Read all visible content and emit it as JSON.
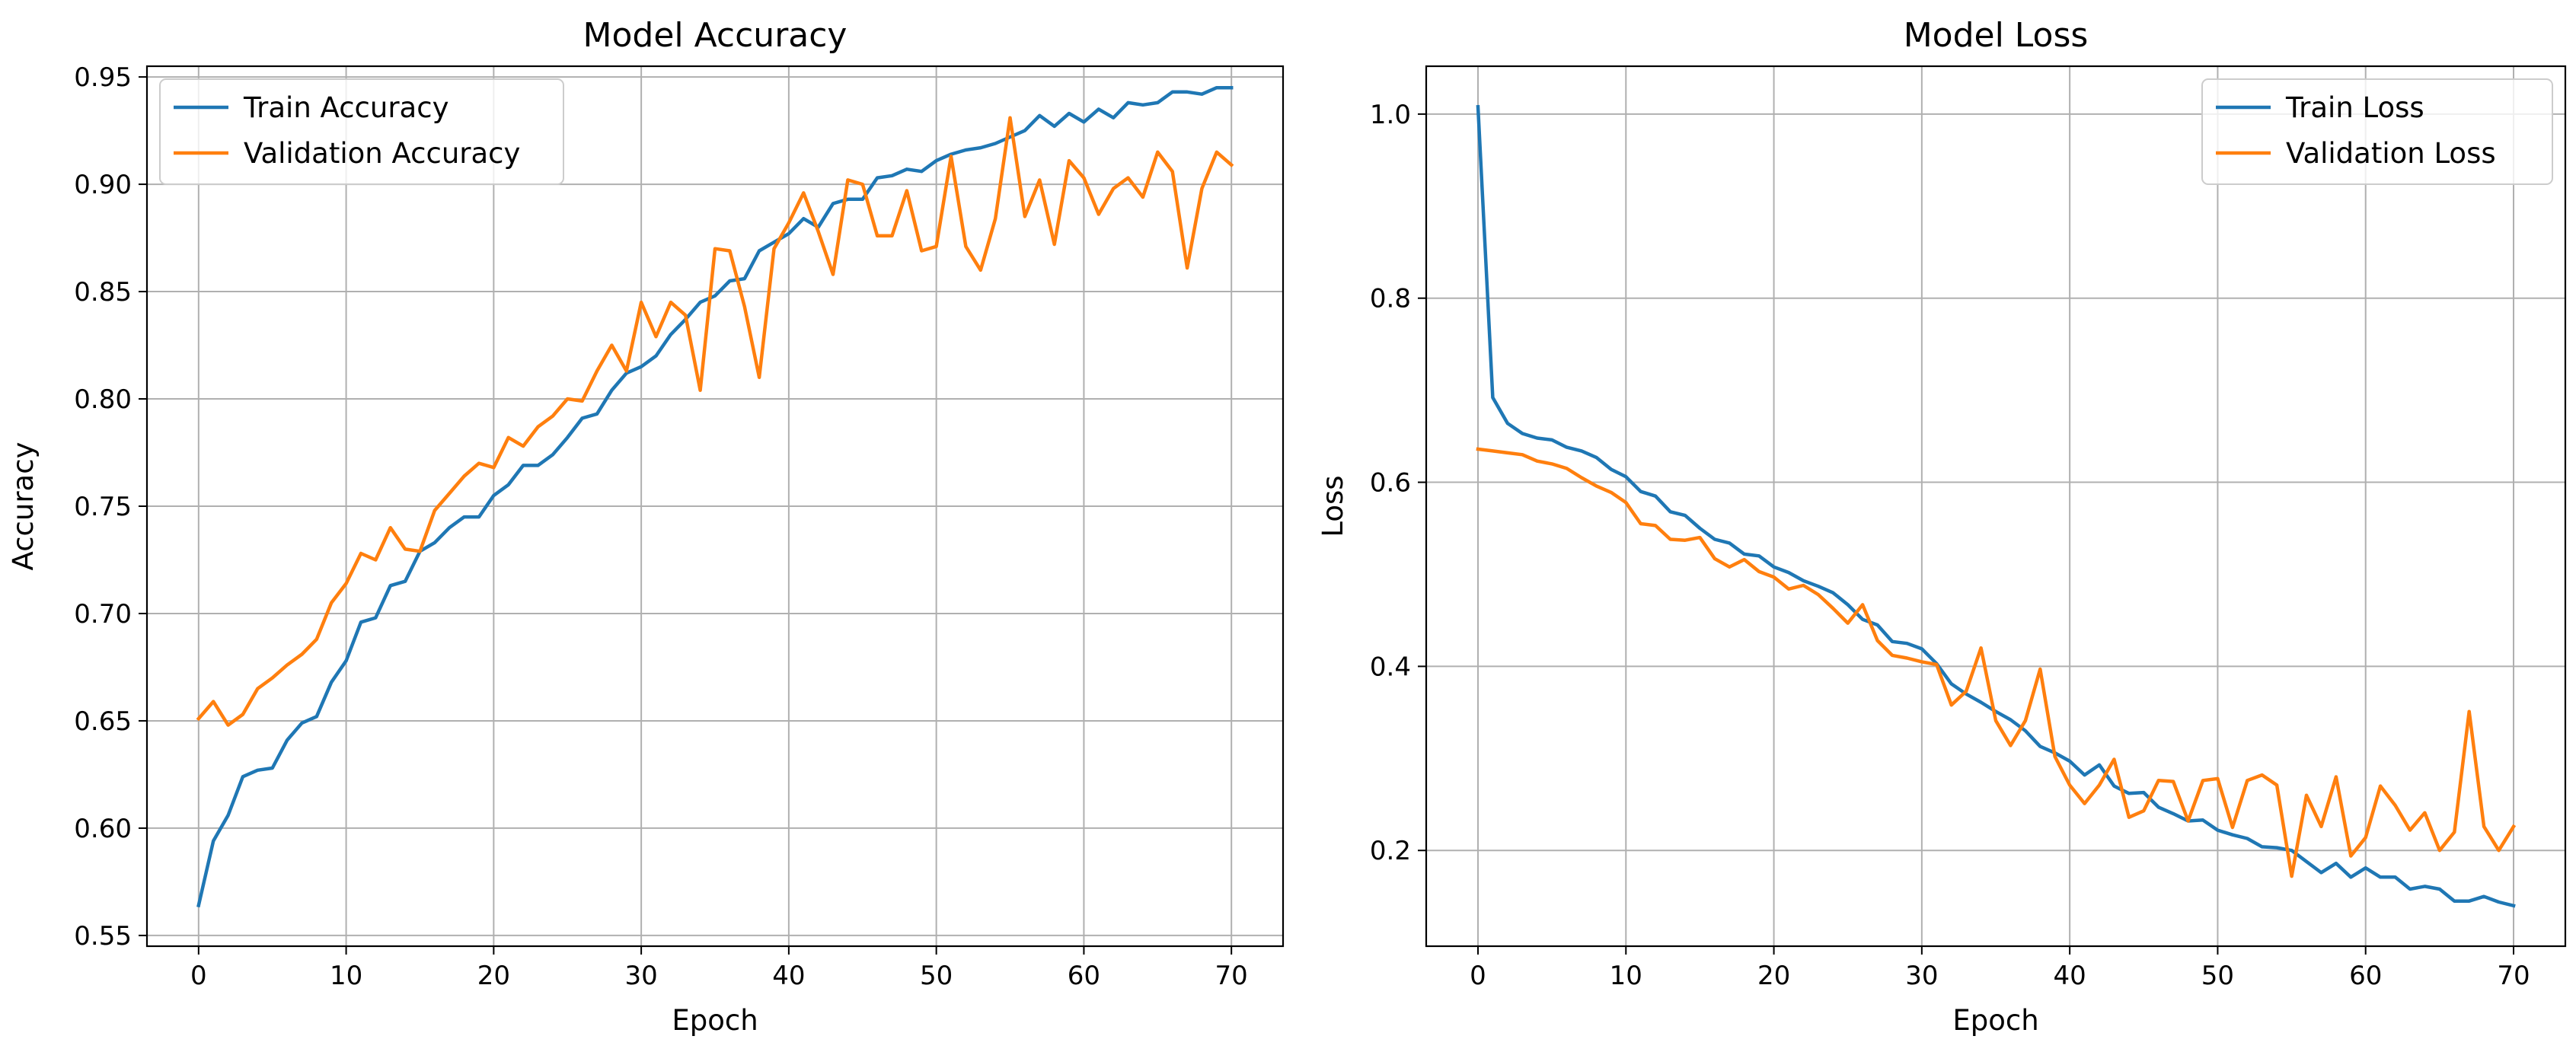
{
  "chart_data": [
    {
      "type": "line",
      "title": "Model Accuracy",
      "xlabel": "Epoch",
      "ylabel": "Accuracy",
      "xlim": [
        -3.5,
        73.5
      ],
      "ylim": [
        0.545,
        0.955
      ],
      "xticks": [
        0,
        10,
        20,
        30,
        40,
        50,
        60,
        70
      ],
      "xtick_labels": [
        "0",
        "10",
        "20",
        "30",
        "40",
        "50",
        "60",
        "70"
      ],
      "yticks": [
        0.55,
        0.6,
        0.65,
        0.7,
        0.75,
        0.8,
        0.85,
        0.9,
        0.95
      ],
      "ytick_labels": [
        "0.55",
        "0.60",
        "0.65",
        "0.70",
        "0.75",
        "0.80",
        "0.85",
        "0.90",
        "0.95"
      ],
      "grid": true,
      "legend_position": "upper-left",
      "x": [
        0,
        1,
        2,
        3,
        4,
        5,
        6,
        7,
        8,
        9,
        10,
        11,
        12,
        13,
        14,
        15,
        16,
        17,
        18,
        19,
        20,
        21,
        22,
        23,
        24,
        25,
        26,
        27,
        28,
        29,
        30,
        31,
        32,
        33,
        34,
        35,
        36,
        37,
        38,
        39,
        40,
        41,
        42,
        43,
        44,
        45,
        46,
        47,
        48,
        49,
        50,
        51,
        52,
        53,
        54,
        55,
        56,
        57,
        58,
        59,
        60,
        61,
        62,
        63,
        64,
        65,
        66,
        67,
        68,
        69,
        70
      ],
      "series": [
        {
          "name": "Train Accuracy",
          "color": "#1f77b4",
          "values": [
            0.564,
            0.594,
            0.606,
            0.624,
            0.627,
            0.628,
            0.641,
            0.649,
            0.652,
            0.668,
            0.678,
            0.696,
            0.698,
            0.713,
            0.715,
            0.729,
            0.733,
            0.74,
            0.745,
            0.745,
            0.755,
            0.76,
            0.769,
            0.769,
            0.774,
            0.782,
            0.791,
            0.793,
            0.804,
            0.812,
            0.815,
            0.82,
            0.83,
            0.837,
            0.845,
            0.848,
            0.855,
            0.856,
            0.869,
            0.873,
            0.877,
            0.884,
            0.88,
            0.891,
            0.893,
            0.893,
            0.903,
            0.904,
            0.907,
            0.906,
            0.911,
            0.914,
            0.916,
            0.917,
            0.919,
            0.922,
            0.925,
            0.932,
            0.927,
            0.933,
            0.929,
            0.935,
            0.931,
            0.938,
            0.937,
            0.938,
            0.943,
            0.943,
            0.942,
            0.945,
            0.945
          ]
        },
        {
          "name": "Validation Accuracy",
          "color": "#ff7f0e",
          "values": [
            0.651,
            0.659,
            0.648,
            0.653,
            0.665,
            0.67,
            0.676,
            0.681,
            0.688,
            0.705,
            0.714,
            0.728,
            0.725,
            0.74,
            0.73,
            0.729,
            0.748,
            0.756,
            0.764,
            0.77,
            0.768,
            0.782,
            0.778,
            0.787,
            0.792,
            0.8,
            0.799,
            0.813,
            0.825,
            0.813,
            0.845,
            0.829,
            0.845,
            0.839,
            0.804,
            0.87,
            0.869,
            0.843,
            0.81,
            0.87,
            0.882,
            0.896,
            0.878,
            0.858,
            0.902,
            0.9,
            0.876,
            0.876,
            0.897,
            0.869,
            0.871,
            0.913,
            0.871,
            0.86,
            0.884,
            0.931,
            0.885,
            0.902,
            0.872,
            0.911,
            0.903,
            0.886,
            0.898,
            0.903,
            0.894,
            0.915,
            0.906,
            0.861,
            0.898,
            0.915,
            0.909
          ]
        }
      ]
    },
    {
      "type": "line",
      "title": "Model Loss",
      "xlabel": "Epoch",
      "ylabel": "Loss",
      "xlim": [
        -3.5,
        73.5
      ],
      "ylim": [
        0.096,
        1.052
      ],
      "xticks": [
        0,
        10,
        20,
        30,
        40,
        50,
        60,
        70
      ],
      "xtick_labels": [
        "0",
        "10",
        "20",
        "30",
        "40",
        "50",
        "60",
        "70"
      ],
      "yticks": [
        0.2,
        0.4,
        0.6,
        0.8,
        1.0
      ],
      "ytick_labels": [
        "0.2",
        "0.4",
        "0.6",
        "0.8",
        "1.0"
      ],
      "grid": true,
      "legend_position": "upper-right",
      "x": [
        0,
        1,
        2,
        3,
        4,
        5,
        6,
        7,
        8,
        9,
        10,
        11,
        12,
        13,
        14,
        15,
        16,
        17,
        18,
        19,
        20,
        21,
        22,
        23,
        24,
        25,
        26,
        27,
        28,
        29,
        30,
        31,
        32,
        33,
        34,
        35,
        36,
        37,
        38,
        39,
        40,
        41,
        42,
        43,
        44,
        45,
        46,
        47,
        48,
        49,
        50,
        51,
        52,
        53,
        54,
        55,
        56,
        57,
        58,
        59,
        60,
        61,
        62,
        63,
        64,
        65,
        66,
        67,
        68,
        69,
        70
      ],
      "series": [
        {
          "name": "Train Loss",
          "color": "#1f77b4",
          "values": [
            1.008,
            0.692,
            0.664,
            0.653,
            0.648,
            0.646,
            0.638,
            0.634,
            0.627,
            0.614,
            0.606,
            0.59,
            0.585,
            0.568,
            0.564,
            0.55,
            0.538,
            0.534,
            0.522,
            0.52,
            0.508,
            0.502,
            0.493,
            0.487,
            0.48,
            0.467,
            0.451,
            0.445,
            0.427,
            0.425,
            0.419,
            0.403,
            0.381,
            0.37,
            0.361,
            0.351,
            0.342,
            0.33,
            0.313,
            0.306,
            0.297,
            0.282,
            0.293,
            0.27,
            0.262,
            0.263,
            0.247,
            0.24,
            0.232,
            0.233,
            0.222,
            0.217,
            0.213,
            0.204,
            0.203,
            0.2,
            0.188,
            0.176,
            0.186,
            0.171,
            0.181,
            0.171,
            0.171,
            0.158,
            0.161,
            0.158,
            0.145,
            0.145,
            0.15,
            0.144,
            0.14
          ]
        },
        {
          "name": "Validation Loss",
          "color": "#ff7f0e",
          "values": [
            0.636,
            0.634,
            0.632,
            0.63,
            0.623,
            0.62,
            0.615,
            0.605,
            0.596,
            0.589,
            0.578,
            0.555,
            0.553,
            0.538,
            0.537,
            0.54,
            0.517,
            0.508,
            0.516,
            0.503,
            0.497,
            0.484,
            0.488,
            0.478,
            0.463,
            0.447,
            0.467,
            0.428,
            0.412,
            0.409,
            0.405,
            0.402,
            0.358,
            0.373,
            0.42,
            0.341,
            0.314,
            0.341,
            0.397,
            0.302,
            0.271,
            0.251,
            0.271,
            0.299,
            0.236,
            0.243,
            0.276,
            0.275,
            0.232,
            0.276,
            0.278,
            0.225,
            0.276,
            0.282,
            0.271,
            0.172,
            0.26,
            0.226,
            0.28,
            0.194,
            0.214,
            0.27,
            0.249,
            0.222,
            0.241,
            0.2,
            0.22,
            0.351,
            0.226,
            0.2,
            0.226
          ]
        }
      ]
    }
  ]
}
